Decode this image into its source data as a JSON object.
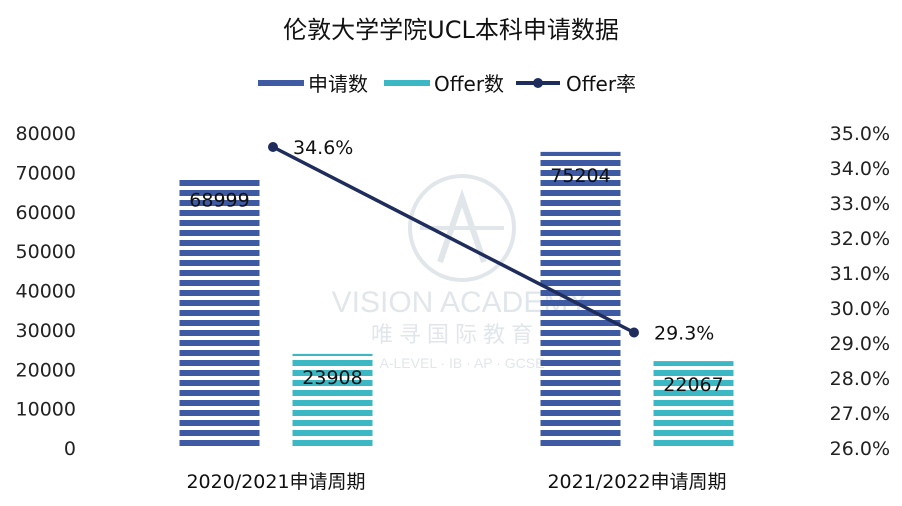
{
  "chart_data": {
    "type": "bar",
    "title": "伦敦大学学院UCL本科申请数据",
    "categories": [
      "2020/2021申请周期",
      "2021/2022申请周期"
    ],
    "series": [
      {
        "name": "申请数",
        "values": [
          68999,
          75204
        ],
        "axis": "left",
        "color": "#3d5aa2"
      },
      {
        "name": "Offer数",
        "values": [
          23908,
          22067
        ],
        "axis": "left",
        "color": "#3bb8c4"
      },
      {
        "name": "Offer率",
        "type": "line",
        "values": [
          34.6,
          29.3
        ],
        "labels": [
          "34.6%",
          "29.3%"
        ],
        "axis": "right",
        "color": "#1f2d5c"
      }
    ],
    "y_left": {
      "ylim": [
        0,
        80000
      ],
      "ticks": [
        "0",
        "10000",
        "20000",
        "30000",
        "40000",
        "50000",
        "60000",
        "70000",
        "80000"
      ]
    },
    "y_right": {
      "ylim": [
        26.0,
        35.0
      ],
      "ticks": [
        "26.0%",
        "27.0%",
        "28.0%",
        "29.0%",
        "30.0%",
        "31.0%",
        "32.0%",
        "33.0%",
        "34.0%",
        "35.0%"
      ]
    },
    "legend": "top",
    "grid": false
  },
  "watermark": {
    "brand": "VISION ACADEMY",
    "brand_cn": "唯寻国际教育",
    "tagline": "A-LEVEL · IB · AP · GCSE"
  }
}
